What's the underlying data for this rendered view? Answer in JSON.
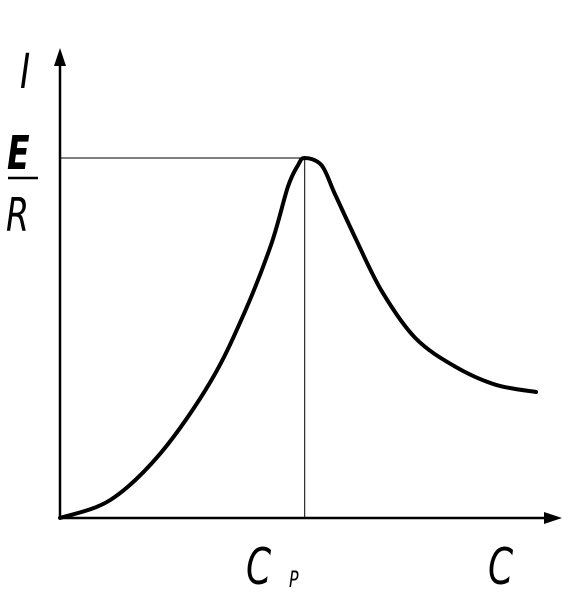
{
  "figure": {
    "y_label_top": "I",
    "y_label_numerator": "E",
    "y_label_denominator": "R",
    "x_label_peak": "C",
    "x_label_peak_subscript": "P",
    "x_label_axis": "C"
  },
  "curve": {
    "description_points": [
      [
        0.0,
        0.0
      ],
      [
        0.15,
        0.05
      ],
      [
        0.3,
        0.18
      ],
      [
        0.45,
        0.38
      ],
      [
        0.55,
        0.57
      ],
      [
        0.63,
        0.76
      ],
      [
        0.68,
        0.92
      ],
      [
        0.71,
        0.98
      ],
      [
        0.73,
        1.0
      ],
      [
        0.78,
        0.98
      ],
      [
        0.82,
        0.9
      ],
      [
        0.88,
        0.78
      ],
      [
        0.96,
        0.63
      ],
      [
        1.06,
        0.5
      ],
      [
        1.18,
        0.42
      ],
      [
        1.3,
        0.37
      ],
      [
        1.42,
        0.35
      ]
    ],
    "peak_x": 0.73,
    "peak_y": 1.0,
    "x_max": 1.42,
    "y_max": 1.0
  },
  "colors": {
    "ink": "#000000",
    "background": "#ffffff"
  }
}
